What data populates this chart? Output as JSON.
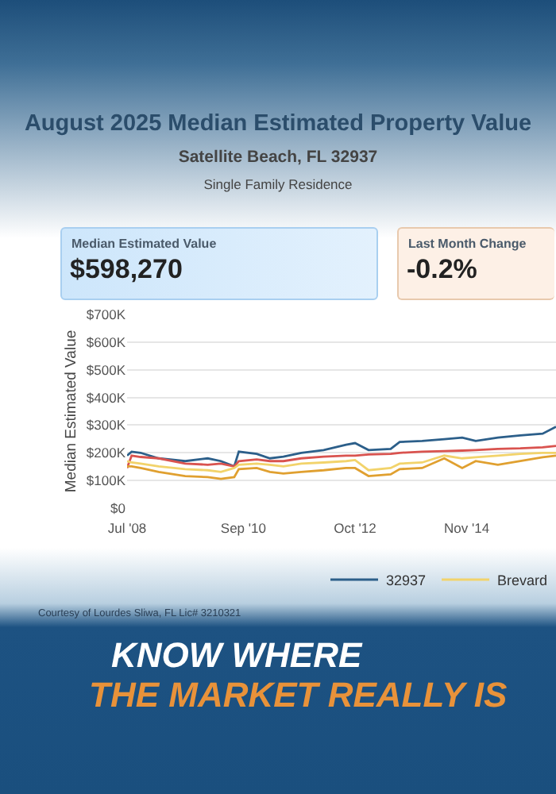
{
  "chart_data": {
    "type": "line",
    "title": "August 2025 Median Estimated Property Value",
    "subtitle": "Satellite Beach, FL 32937",
    "ylabel": "Median Estimated Value",
    "annotations": [
      "Single Family Residence",
      "Median Estimated Value",
      "$598,270",
      "Last Month Change",
      "-0.2%",
      "Courtesy of Lourdes Sliwa, FL Lic# 3210321",
      "KNOW WHERE",
      "THE MARKET REALLY IS"
    ],
    "x": [
      "2008-07",
      "2008-08",
      "2008-10",
      "2009-02",
      "2009-08",
      "2010-01",
      "2010-04",
      "2010-07",
      "2010-08",
      "2010-12",
      "2011-03",
      "2011-06",
      "2011-10",
      "2012-03",
      "2012-08",
      "2012-10",
      "2013-01",
      "2013-06",
      "2013-08",
      "2014-01",
      "2014-06",
      "2014-10",
      "2015-01",
      "2015-06",
      "2015-11",
      "2016-04",
      "2016-07"
    ],
    "series": [
      {
        "name": "32937",
        "color": "#2c5f8a",
        "values": [
          190,
          204,
          200,
          180,
          170,
          180,
          170,
          151,
          204,
          196,
          180,
          186,
          200,
          210,
          229,
          235,
          210,
          214,
          239,
          243,
          249,
          255,
          243,
          255,
          263,
          269,
          294
        ]
      },
      {
        "color": "#d9534f",
        "values": [
          145,
          190,
          185,
          180,
          161,
          157,
          161,
          151,
          170,
          176,
          170,
          170,
          180,
          186,
          190,
          190,
          194,
          196,
          200,
          204,
          206,
          208,
          210,
          214,
          216,
          220,
          225
        ]
      },
      {
        "color": "#e0a030",
        "values": [
          151,
          151,
          145,
          131,
          116,
          112,
          106,
          112,
          141,
          145,
          131,
          125,
          131,
          137,
          145,
          145,
          116,
          122,
          141,
          145,
          180,
          145,
          170,
          157,
          170,
          184,
          190
        ]
      },
      {
        "name": "Brevard",
        "color": "#f2d36b",
        "values": [
          170,
          165,
          161,
          151,
          141,
          137,
          131,
          145,
          157,
          161,
          157,
          151,
          161,
          165,
          170,
          174,
          137,
          145,
          161,
          165,
          190,
          180,
          184,
          190,
          196,
          200,
          200
        ]
      }
    ],
    "xlim": [
      "2008-07",
      "2016-07"
    ],
    "xticks": [
      {
        "value": "2008-07",
        "label": "Jul '08"
      },
      {
        "value": "2010-09",
        "label": "Sep '10"
      },
      {
        "value": "2012-10",
        "label": "Oct '12"
      },
      {
        "value": "2014-11",
        "label": "Nov '14"
      }
    ],
    "ylim": [
      0,
      700
    ],
    "yticks": [
      {
        "value": 0,
        "label": "$0"
      },
      {
        "value": 100,
        "label": "$100K"
      },
      {
        "value": 200,
        "label": "$200K"
      },
      {
        "value": 300,
        "label": "$300K"
      },
      {
        "value": 400,
        "label": "$400K"
      },
      {
        "value": 500,
        "label": "$500K"
      },
      {
        "value": 600,
        "label": "$600K"
      },
      {
        "value": 700,
        "label": "$700K"
      }
    ],
    "grid": "y",
    "legend": "bottom right",
    "marker": "none",
    "line_style": "solid"
  }
}
